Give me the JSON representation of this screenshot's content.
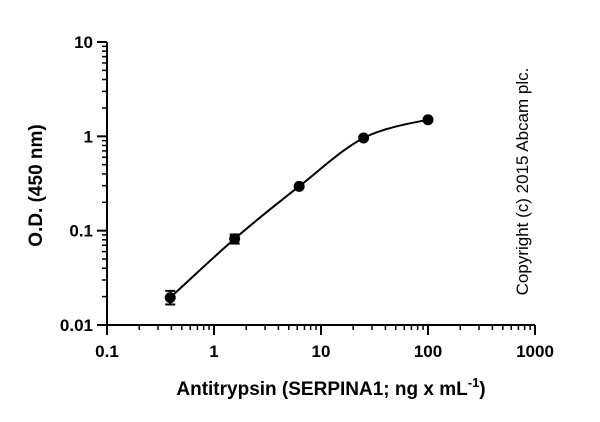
{
  "chart_data": {
    "type": "scatter",
    "x_scale": "log",
    "y_scale": "log",
    "xlim": [
      0.1,
      1000
    ],
    "ylim": [
      0.01,
      10
    ],
    "x_ticks": [
      0.1,
      1,
      10,
      100,
      1000
    ],
    "x_tick_labels": [
      "0.1",
      "1",
      "10",
      "100",
      "1000"
    ],
    "y_ticks": [
      0.01,
      0.1,
      1,
      10
    ],
    "y_tick_labels": [
      "0.01",
      "0.1",
      "1",
      "10"
    ],
    "xlabel": {
      "main": "Antitrypsin (SERPINA1; ng x mL",
      "superscript": "-1",
      "close": ")"
    },
    "ylabel": "O.D. (450 nm)",
    "grid": false,
    "series": [
      {
        "x": [
          0.39,
          1.56,
          6.25,
          25,
          100
        ],
        "y": [
          0.0195,
          0.082,
          0.295,
          0.96,
          1.5
        ],
        "err_low": [
          0.0165,
          0.073,
          0.295,
          0.96,
          1.5
        ],
        "err_high": [
          0.023,
          0.091,
          0.295,
          0.96,
          1.5
        ],
        "fit_curve": true,
        "color": "#000000"
      }
    ],
    "annotation": "Copyright (c) 2015 Abcam plc."
  }
}
